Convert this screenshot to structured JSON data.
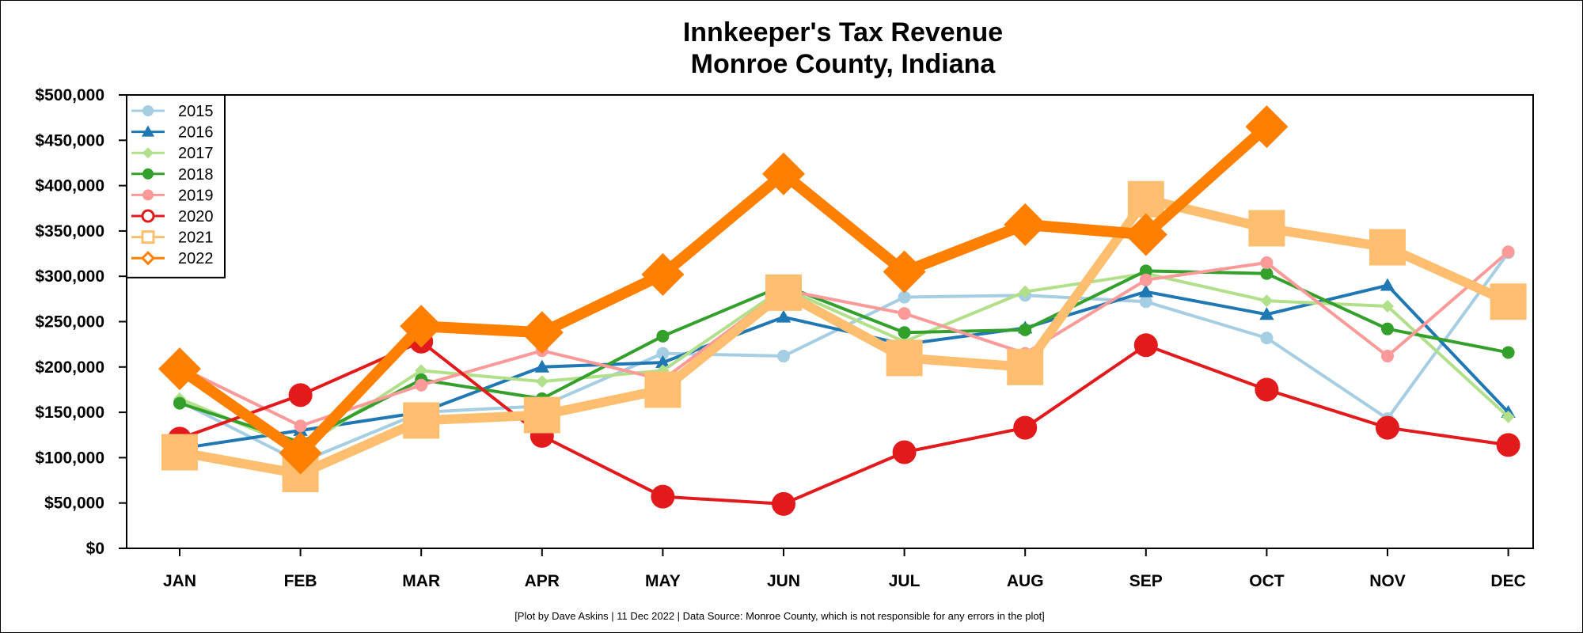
{
  "chart_data": {
    "type": "line",
    "title": [
      "Innkeeper's Tax Revenue",
      "Monroe County, Indiana"
    ],
    "xlabel": "",
    "ylabel": "",
    "ylim": [
      0,
      500000
    ],
    "y_ticks": [
      0,
      50000,
      100000,
      150000,
      200000,
      250000,
      300000,
      350000,
      400000,
      450000,
      500000
    ],
    "y_tick_labels": [
      "$0",
      "$50,000",
      "$100,000",
      "$150,000",
      "$200,000",
      "$250,000",
      "$300,000",
      "$350,000",
      "$400,000",
      "$450,000",
      "$500,000"
    ],
    "categories": [
      "JAN",
      "FEB",
      "MAR",
      "APR",
      "MAY",
      "JUN",
      "JUL",
      "AUG",
      "SEP",
      "OCT",
      "NOV",
      "DEC"
    ],
    "legend_position": "top-left",
    "grid": false,
    "series": [
      {
        "name": "2015",
        "color": "#a6cee3",
        "marker": "circle",
        "emphasis": "thin",
        "values": [
          162000,
          95000,
          150000,
          157000,
          215000,
          212000,
          277000,
          279000,
          272000,
          232000,
          143000,
          326000
        ]
      },
      {
        "name": "2016",
        "color": "#1f78b4",
        "marker": "triangle",
        "emphasis": "thin",
        "values": [
          110000,
          130000,
          150000,
          200000,
          205000,
          255000,
          225000,
          243000,
          283000,
          258000,
          290000,
          150000
        ]
      },
      {
        "name": "2017",
        "color": "#b2df8a",
        "marker": "diamond-small",
        "emphasis": "thin",
        "values": [
          165000,
          110000,
          196000,
          184000,
          196000,
          287000,
          228000,
          283000,
          303000,
          273000,
          267000,
          145000
        ]
      },
      {
        "name": "2018",
        "color": "#33a02c",
        "marker": "circle-filled",
        "emphasis": "thin",
        "values": [
          160000,
          117000,
          186000,
          165000,
          234000,
          290000,
          238000,
          241000,
          306000,
          303000,
          242000,
          216000
        ]
      },
      {
        "name": "2019",
        "color": "#fb9a99",
        "marker": "circle-small",
        "emphasis": "thin",
        "values": [
          200000,
          135000,
          180000,
          218000,
          186000,
          285000,
          259000,
          215000,
          296000,
          315000,
          212000,
          327000
        ]
      },
      {
        "name": "2020",
        "color": "#e31a1c",
        "marker": "circle-large",
        "emphasis": "medium",
        "values": [
          121000,
          169000,
          228000,
          124000,
          57000,
          49000,
          106000,
          133000,
          224000,
          175000,
          133000,
          114000
        ]
      },
      {
        "name": "2021",
        "color": "#fdbf6f",
        "marker": "square",
        "emphasis": "thick",
        "values": [
          106000,
          82000,
          141000,
          147000,
          175000,
          282000,
          210000,
          200000,
          385000,
          353000,
          332000,
          272000
        ]
      },
      {
        "name": "2022",
        "color": "#ff7f00",
        "marker": "diamond",
        "emphasis": "thickest",
        "values": [
          198000,
          105000,
          245000,
          238000,
          302000,
          413000,
          305000,
          357000,
          346000,
          465000,
          null,
          null
        ]
      }
    ],
    "credit": "[Plot by Dave Askins | 11 Dec 2022 | Data Source: Monroe County, which is not responsible for any errors in the plot]"
  }
}
